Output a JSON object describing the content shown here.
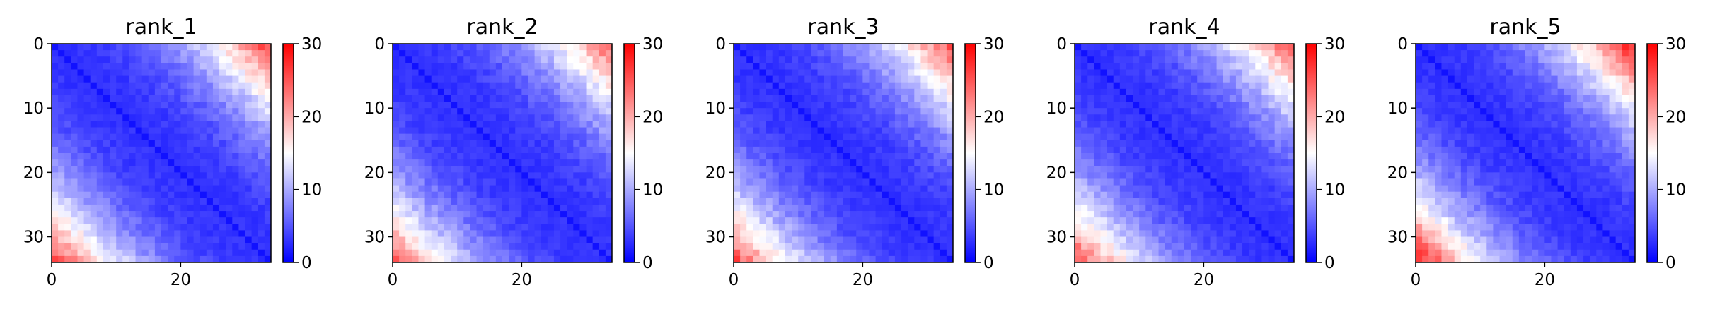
{
  "chart_data": [
    {
      "type": "heatmap",
      "title": "rank_1",
      "size": 34,
      "xticks": [
        0,
        20
      ],
      "yticks": [
        0,
        10,
        20,
        30
      ],
      "colorbar_ticks": [
        0,
        10,
        20,
        30
      ],
      "vmin": 0,
      "vmax": 30,
      "colormap": [
        "#0000ff",
        "#ffffff",
        "#ff0000"
      ],
      "corner_value": 26,
      "near_diagonal_value": 3,
      "variation_seed": 11
    },
    {
      "type": "heatmap",
      "title": "rank_2",
      "size": 34,
      "xticks": [
        0,
        20
      ],
      "yticks": [
        0,
        10,
        20,
        30
      ],
      "colorbar_ticks": [
        0,
        10,
        20,
        30
      ],
      "vmin": 0,
      "vmax": 30,
      "colormap": [
        "#0000ff",
        "#ffffff",
        "#ff0000"
      ],
      "corner_value": 24,
      "near_diagonal_value": 3,
      "variation_seed": 23
    },
    {
      "type": "heatmap",
      "title": "rank_3",
      "size": 34,
      "xticks": [
        0,
        20
      ],
      "yticks": [
        0,
        10,
        20,
        30
      ],
      "colorbar_ticks": [
        0,
        10,
        20,
        30
      ],
      "vmin": 0,
      "vmax": 30,
      "colormap": [
        "#0000ff",
        "#ffffff",
        "#ff0000"
      ],
      "corner_value": 25,
      "near_diagonal_value": 3,
      "variation_seed": 37
    },
    {
      "type": "heatmap",
      "title": "rank_4",
      "size": 34,
      "xticks": [
        0,
        20
      ],
      "yticks": [
        0,
        10,
        20,
        30
      ],
      "colorbar_ticks": [
        0,
        10,
        20,
        30
      ],
      "vmin": 0,
      "vmax": 30,
      "colormap": [
        "#0000ff",
        "#ffffff",
        "#ff0000"
      ],
      "corner_value": 25,
      "near_diagonal_value": 3,
      "variation_seed": 51
    },
    {
      "type": "heatmap",
      "title": "rank_5",
      "size": 34,
      "xticks": [
        0,
        20
      ],
      "yticks": [
        0,
        10,
        20,
        30
      ],
      "colorbar_ticks": [
        0,
        10,
        20,
        30
      ],
      "vmin": 0,
      "vmax": 30,
      "colormap": [
        "#0000ff",
        "#ffffff",
        "#ff0000"
      ],
      "corner_value": 28,
      "near_diagonal_value": 3,
      "variation_seed": 67
    }
  ]
}
